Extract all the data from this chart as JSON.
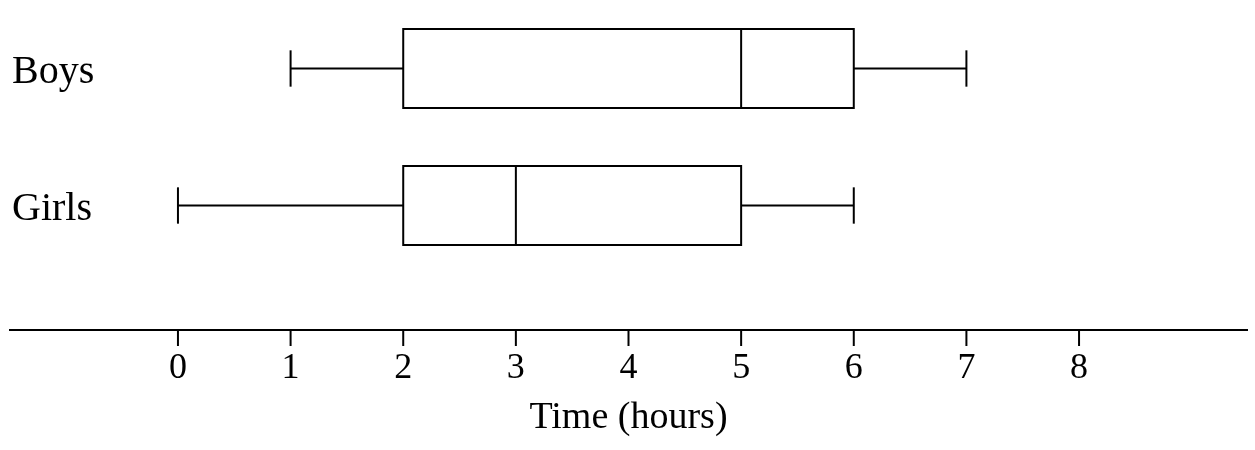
{
  "chart_data": {
    "type": "box",
    "orientation": "horizontal",
    "categories": [
      "Boys",
      "Girls"
    ],
    "boxes": [
      {
        "low": 1,
        "q1": 2,
        "median": 5,
        "q3": 6,
        "high": 7
      },
      {
        "low": 0,
        "q1": 2,
        "median": 3,
        "q3": 5,
        "high": 6
      }
    ],
    "xlabel": "Time (hours)",
    "xlim": [
      -1.5,
      9.5
    ],
    "xticks": [
      0,
      1,
      2,
      3,
      4,
      5,
      6,
      7,
      8
    ]
  }
}
